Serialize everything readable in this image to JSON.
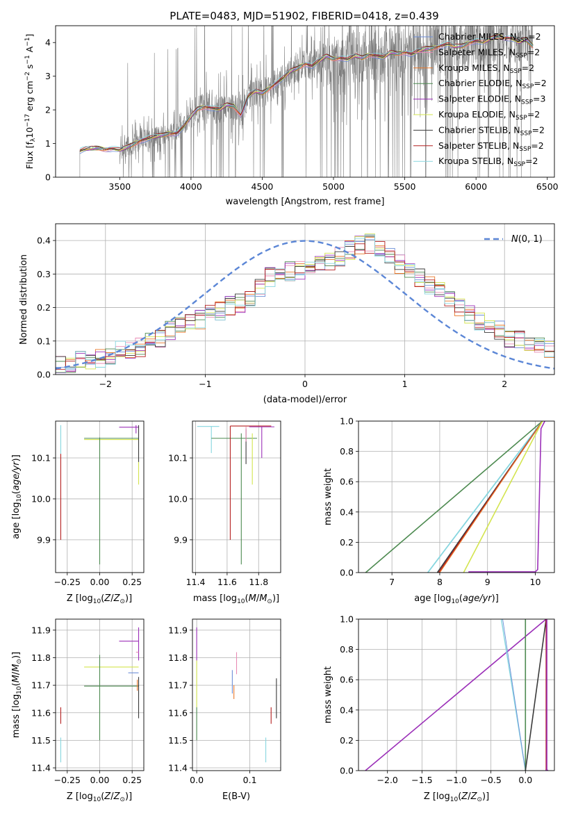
{
  "title": "PLATE=0483, MJD=51902, FIBERID=0418, z=0.439",
  "colors": {
    "chabrier_miles": "#6c8ed8",
    "salpeter_miles": "#e88bb4",
    "kroupa_miles": "#e9782a",
    "chabrier_elodie": "#4d8a50",
    "salpeter_elodie": "#9b2fb8",
    "kroupa_elodie": "#d3e44e",
    "chabrier_stelib": "#3a3a3a",
    "salpeter_stelib": "#b41f1f",
    "kroupa_stelib": "#86d6df",
    "data": "#7f7f7f",
    "normal": "#5b86d6"
  },
  "legend_spectrum": [
    "Chabrier MILES, N",
    "Salpeter MILES, N",
    "Kroupa MILES, N",
    "Chabrier ELODIE, N",
    "Salpeter ELODIE, N",
    "Kroupa ELODIE, N",
    "Chabrier STELIB, N",
    "Salpeter STELIB, N",
    "Kroupa STELIB, N"
  ],
  "legend_counts": [
    "2",
    "2",
    "2",
    "2",
    "3",
    "2",
    "2",
    "2",
    "2"
  ],
  "legend_sub": "SSP",
  "chart_data": [
    {
      "id": "spectrum",
      "type": "line",
      "xlabel": "wavelength [Angstrom, rest frame]",
      "ylabel": "Flux [f_λ 10^-17 erg cm^-2 s^-1 A^-1]",
      "xlim": [
        3050,
        6550
      ],
      "ylim": [
        0,
        4.5
      ],
      "xticks": [
        3500,
        4000,
        4500,
        5000,
        5500,
        6000,
        6500
      ],
      "yticks": [
        0,
        1,
        2,
        3,
        4
      ],
      "model_continuum": {
        "x": [
          3220,
          3250,
          3300,
          3350,
          3400,
          3450,
          3500,
          3550,
          3600,
          3650,
          3700,
          3750,
          3800,
          3850,
          3900,
          3950,
          4000,
          4050,
          4100,
          4150,
          4200,
          4250,
          4300,
          4350,
          4400,
          4450,
          4500,
          4550,
          4600,
          4650,
          4700,
          4750,
          4800,
          4850,
          4900,
          4950,
          5000,
          5050,
          5100,
          5150,
          5200,
          5250,
          5300,
          5350,
          5400,
          5450,
          5500,
          5550,
          5600,
          5650,
          5700,
          5750,
          5800,
          5850,
          5900,
          5950,
          6000,
          6050,
          6100,
          6150,
          6200,
          6250,
          6300,
          6350,
          6400
        ],
        "y": [
          0.78,
          0.82,
          0.85,
          0.87,
          0.83,
          0.85,
          0.8,
          0.88,
          1.0,
          1.1,
          1.15,
          1.2,
          1.25,
          1.32,
          1.3,
          1.5,
          1.8,
          2.05,
          2.1,
          2.05,
          2.0,
          2.15,
          2.12,
          1.85,
          2.4,
          2.55,
          2.5,
          2.65,
          2.8,
          2.95,
          3.15,
          3.25,
          3.38,
          3.3,
          3.45,
          3.6,
          3.52,
          3.55,
          3.5,
          3.6,
          3.55,
          3.65,
          3.62,
          3.55,
          3.7,
          3.68,
          3.72,
          3.65,
          3.75,
          3.82,
          3.85,
          3.9,
          3.95,
          3.88,
          3.9,
          4.0,
          4.05,
          4.0,
          4.1,
          4.2,
          4.15,
          4.12,
          4.0,
          4.1,
          3.9
        ]
      },
      "series": [
        "Chabrier MILES",
        "Salpeter MILES",
        "Kroupa MILES",
        "Chabrier ELODIE",
        "Salpeter ELODIE",
        "Kroupa ELODIE",
        "Chabrier STELIB",
        "Salpeter STELIB",
        "Kroupa STELIB"
      ]
    },
    {
      "id": "residuals",
      "type": "line",
      "xlabel": "(data-model)/error",
      "ylabel": "Normed distribution",
      "xlim": [
        -2.5,
        2.5
      ],
      "ylim": [
        0,
        0.45
      ],
      "xticks": [
        -2,
        -1,
        0,
        1,
        2
      ],
      "yticks": [
        0.0,
        0.1,
        0.2,
        0.3,
        0.4
      ],
      "legend": "N(0,1)",
      "bin_edges": [
        -2.5,
        -2.4,
        -2.3,
        -2.2,
        -2.1,
        -2.0,
        -1.9,
        -1.8,
        -1.7,
        -1.6,
        -1.5,
        -1.4,
        -1.3,
        -1.2,
        -1.1,
        -1.0,
        -0.9,
        -0.8,
        -0.7,
        -0.6,
        -0.5,
        -0.4,
        -0.3,
        -0.2,
        -0.1,
        0.0,
        0.1,
        0.2,
        0.3,
        0.4,
        0.5,
        0.6,
        0.7,
        0.8,
        0.9,
        1.0,
        1.1,
        1.2,
        1.3,
        1.4,
        1.5,
        1.6,
        1.7,
        1.8,
        1.9,
        2.0,
        2.1,
        2.2,
        2.3,
        2.4,
        2.5
      ],
      "histogram": [
        0.025,
        0.03,
        0.04,
        0.04,
        0.05,
        0.06,
        0.07,
        0.075,
        0.08,
        0.095,
        0.11,
        0.13,
        0.14,
        0.15,
        0.165,
        0.18,
        0.19,
        0.205,
        0.215,
        0.225,
        0.26,
        0.29,
        0.3,
        0.31,
        0.31,
        0.32,
        0.33,
        0.335,
        0.35,
        0.37,
        0.39,
        0.39,
        0.37,
        0.35,
        0.33,
        0.31,
        0.29,
        0.27,
        0.25,
        0.23,
        0.2,
        0.18,
        0.16,
        0.14,
        0.13,
        0.11,
        0.1,
        0.09,
        0.08,
        0.08
      ]
    },
    {
      "id": "age-vs-Z",
      "type": "scatter",
      "xlabel": "Z [log10(Z/Z⊙)]",
      "ylabel": "age [log10(age/yr)]",
      "xlim": [
        -0.34,
        0.34
      ],
      "ylim": [
        9.82,
        10.19
      ],
      "xticks": [
        -0.25,
        0.0,
        0.25
      ],
      "yticks": [
        9.9,
        10.0,
        10.1
      ]
    },
    {
      "id": "age-vs-mass",
      "type": "scatter",
      "xlabel": "mass [log10(M/M⊙)]",
      "xlim": [
        11.38,
        11.94
      ],
      "ylim": [
        9.82,
        10.19
      ],
      "xticks": [
        11.4,
        11.6,
        11.8
      ],
      "yticks": [
        9.9,
        10.0,
        10.1
      ]
    },
    {
      "id": "mass-weight-vs-age",
      "type": "line",
      "xlabel": "age [log10(age/yr)]",
      "ylabel": "mass weight",
      "xlim": [
        6.3,
        10.4
      ],
      "ylim": [
        0,
        1
      ],
      "xticks": [
        7,
        8,
        9,
        10
      ],
      "yticks": [
        0.0,
        0.2,
        0.4,
        0.6,
        0.8,
        1.0
      ]
    },
    {
      "id": "mass-vs-Z",
      "type": "scatter",
      "xlabel": "Z [log10(Z/Z⊙)]",
      "ylabel": "mass [log10(M/M⊙)]",
      "xlim": [
        -0.34,
        0.34
      ],
      "ylim": [
        11.39,
        11.94
      ],
      "xticks": [
        -0.25,
        0.0,
        0.25
      ],
      "yticks": [
        11.4,
        11.5,
        11.6,
        11.7,
        11.8,
        11.9
      ]
    },
    {
      "id": "mass-vs-ebv",
      "type": "scatter",
      "xlabel": "E(B-V)",
      "xlim": [
        -0.008,
        0.158
      ],
      "ylim": [
        11.39,
        11.94
      ],
      "xticks": [
        0.0,
        0.1
      ],
      "yticks": [
        11.4,
        11.5,
        11.6,
        11.7,
        11.8,
        11.9
      ]
    },
    {
      "id": "mass-weight-vs-Z",
      "type": "line",
      "xlabel": "Z [log10(Z/Z⊙)]",
      "ylabel": "mass weight",
      "xlim": [
        -2.42,
        0.42
      ],
      "ylim": [
        0,
        1
      ],
      "xticks": [
        -2.0,
        -1.5,
        -1.0,
        -0.5,
        0.0
      ],
      "yticks": [
        0.0,
        0.2,
        0.4,
        0.6,
        0.8,
        1.0
      ]
    }
  ]
}
